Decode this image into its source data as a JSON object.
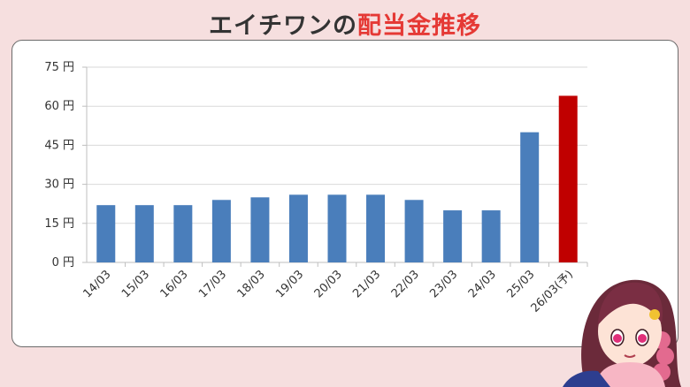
{
  "title": {
    "part1": "エイチワンの",
    "part2": "配当金推移"
  },
  "colors": {
    "background": "#f6dfdf",
    "bar": "#4a7ebb",
    "bar_forecast": "#c00000",
    "title_accent": "#e53935"
  },
  "chart_data": {
    "type": "bar",
    "categories": [
      "14/03",
      "15/03",
      "16/03",
      "17/03",
      "18/03",
      "19/03",
      "20/03",
      "21/03",
      "22/03",
      "23/03",
      "24/03",
      "25/03",
      "26/03(予)"
    ],
    "values": [
      22,
      22,
      22,
      24,
      25,
      26,
      26,
      26,
      24,
      20,
      20,
      50,
      64
    ],
    "highlight_index": 12,
    "ylim": [
      0,
      75
    ],
    "yticks": [
      0,
      15,
      30,
      45,
      60,
      75
    ],
    "ytick_labels": [
      "0 円",
      "15 円",
      "30 円",
      "45 円",
      "60 円",
      "75 円"
    ],
    "grid": true,
    "title": "",
    "xlabel": "",
    "ylabel": ""
  }
}
